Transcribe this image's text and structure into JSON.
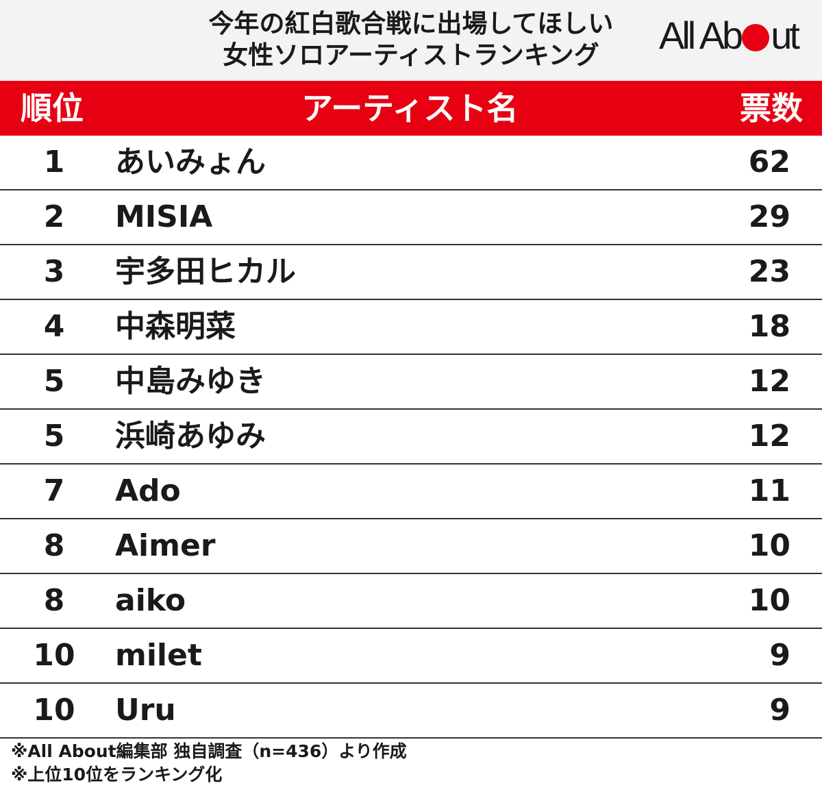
{
  "header": {
    "title_line1": "今年の紅白歌合戦に出場してほしい",
    "title_line2": "女性ソロアーティストランキング",
    "logo_left": "All Ab",
    "logo_right": "ut",
    "brand_color": "#e60012"
  },
  "table": {
    "columns": [
      "順位",
      "アーティスト名",
      "票数"
    ],
    "header_color": "#e60012"
  },
  "chart_data": {
    "type": "table",
    "title": "今年の紅白歌合戦に出場してほしい 女性ソロアーティストランキング",
    "columns": [
      "順位",
      "アーティスト名",
      "票数"
    ],
    "rows": [
      {
        "rank": "1",
        "name": "あいみょん",
        "votes": "62"
      },
      {
        "rank": "2",
        "name": "MISIA",
        "votes": "29"
      },
      {
        "rank": "3",
        "name": "宇多田ヒカル",
        "votes": "23"
      },
      {
        "rank": "4",
        "name": "中森明菜",
        "votes": "18"
      },
      {
        "rank": "5",
        "name": "中島みゆき",
        "votes": "12"
      },
      {
        "rank": "5",
        "name": "浜崎あゆみ",
        "votes": "12"
      },
      {
        "rank": "7",
        "name": "Ado",
        "votes": "11"
      },
      {
        "rank": "8",
        "name": "Aimer",
        "votes": "10"
      },
      {
        "rank": "8",
        "name": "aiko",
        "votes": "10"
      },
      {
        "rank": "10",
        "name": "milet",
        "votes": "9"
      },
      {
        "rank": "10",
        "name": "Uru",
        "votes": "9"
      }
    ]
  },
  "footer": {
    "note1": "※All About編集部 独自調査（n=436）より作成",
    "note2": "※上位10位をランキング化"
  }
}
